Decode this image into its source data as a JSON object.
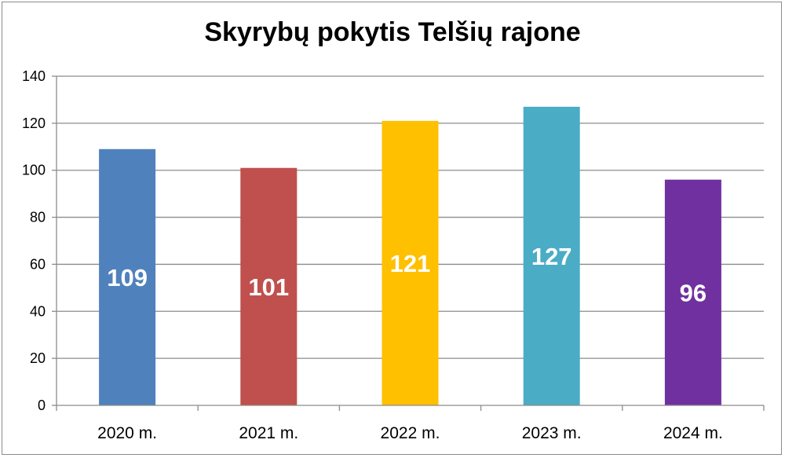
{
  "chart_data": {
    "type": "bar",
    "title": "Skyrybų pokytis Telšių rajone",
    "categories": [
      "2020 m.",
      "2021 m.",
      "2022 m.",
      "2023 m.",
      "2024 m."
    ],
    "values": [
      109,
      101,
      121,
      127,
      96
    ],
    "colors": [
      "#4f81bd",
      "#c0504d",
      "#ffc000",
      "#4bacc6",
      "#7030a0"
    ],
    "ylim": [
      0,
      140
    ],
    "yticks": [
      0,
      20,
      40,
      60,
      80,
      100,
      120,
      140
    ],
    "grid": true,
    "legend": "none",
    "data_labels": true
  }
}
